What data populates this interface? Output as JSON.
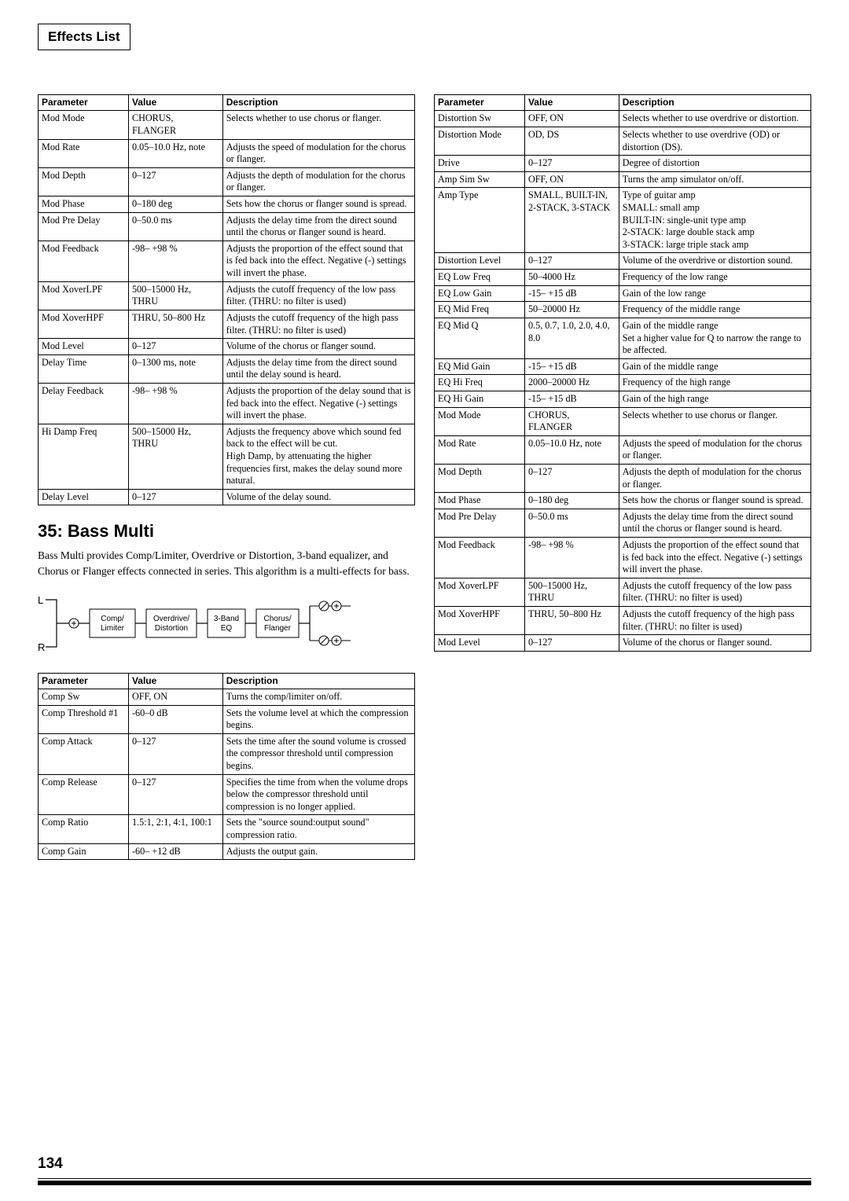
{
  "page_title_box": "Effects List",
  "section_number_title": "35: Bass Multi",
  "section_intro": "Bass Multi provides Comp/Limiter, Overdrive or Distortion, 3-band equalizer, and Chorus or Flanger effects connected in series. This algorithm is a multi-effects for bass.",
  "page_number": "134",
  "diagram": {
    "labels": {
      "L": "L",
      "R": "R",
      "b1": "Comp/\nLimiter",
      "b2": "Overdrive/\nDistortion",
      "b3": "3-Band\nEQ",
      "b4": "Chorus/\nFlanger"
    }
  },
  "headers": {
    "param": "Parameter",
    "value": "Value",
    "desc": "Description"
  },
  "table_top_left": [
    {
      "p": "Mod Mode",
      "v": "CHORUS, FLANGER",
      "d": "Selects whether to use chorus or flanger."
    },
    {
      "p": "Mod Rate",
      "v": "0.05–10.0 Hz, note",
      "d": "Adjusts the speed of modulation for the chorus or flanger."
    },
    {
      "p": "Mod Depth",
      "v": "0–127",
      "d": "Adjusts the depth of modulation for the chorus or flanger."
    },
    {
      "p": "Mod Phase",
      "v": "0–180 deg",
      "d": "Sets how the chorus or flanger sound is spread."
    },
    {
      "p": "Mod Pre Delay",
      "v": "0–50.0 ms",
      "d": "Adjusts the delay time from the direct sound until the chorus or flanger sound is heard."
    },
    {
      "p": "Mod Feedback",
      "v": "-98– +98 %",
      "d": "Adjusts the proportion of the effect sound that is fed back into the effect. Negative (-) settings will invert the phase."
    },
    {
      "p": "Mod XoverLPF",
      "v": "500–15000 Hz, THRU",
      "d": "Adjusts the cutoff frequency of the low pass filter. (THRU: no filter is used)"
    },
    {
      "p": "Mod XoverHPF",
      "v": "THRU, 50–800 Hz",
      "d": "Adjusts the cutoff frequency of the high pass filter. (THRU: no filter is used)"
    },
    {
      "p": "Mod Level",
      "v": "0–127",
      "d": "Volume of the chorus or flanger sound."
    },
    {
      "p": "Delay Time",
      "v": "0–1300 ms, note",
      "d": "Adjusts the delay time from the direct sound until the delay sound is heard."
    },
    {
      "p": "Delay Feedback",
      "v": "-98– +98 %",
      "d": "Adjusts the proportion of the delay sound that is fed back into the effect. Negative (-) settings will invert the phase."
    },
    {
      "p": "Hi Damp Freq",
      "v": "500–15000 Hz, THRU",
      "d": "Adjusts the frequency above which sound fed back to the effect will be cut.\nHigh Damp, by attenuating the higher frequencies first, makes the delay sound more natural."
    },
    {
      "p": "Delay Level",
      "v": "0–127",
      "d": "Volume of the delay sound."
    }
  ],
  "table_bottom_left": [
    {
      "p": "Comp Sw",
      "v": "OFF, ON",
      "d": "Turns the comp/limiter on/off."
    },
    {
      "p": "Comp Threshold #1",
      "v": "-60–0 dB",
      "d": "Sets the volume level at which the compression begins."
    },
    {
      "p": "Comp Attack",
      "v": "0–127",
      "d": "Sets the time after the sound volume is crossed the compressor threshold until compression begins."
    },
    {
      "p": "Comp Release",
      "v": "0–127",
      "d": "Specifies the time from when the volume drops below the compressor threshold until compression is no longer applied."
    },
    {
      "p": "Comp Ratio",
      "v": "1.5:1, 2:1, 4:1, 100:1",
      "d": "Sets the \"source sound:output sound\" compression ratio."
    },
    {
      "p": "Comp Gain",
      "v": "-60– +12 dB",
      "d": "Adjusts the output gain."
    }
  ],
  "table_right": [
    {
      "p": "Distortion Sw",
      "v": "OFF, ON",
      "d": "Selects whether to use overdrive or distortion."
    },
    {
      "p": "Distortion Mode",
      "v": "OD, DS",
      "d": "Selects whether to use overdrive (OD) or distortion (DS)."
    },
    {
      "p": "Drive",
      "v": "0–127",
      "d": "Degree of distortion"
    },
    {
      "p": "Amp Sim Sw",
      "v": "OFF, ON",
      "d": "Turns the amp simulator on/off."
    },
    {
      "p": "Amp Type",
      "v": "SMALL, BUILT-IN, 2-STACK, 3-STACK",
      "d": "Type of guitar amp\nSMALL: small amp\nBUILT-IN: single-unit type amp\n2-STACK: large double stack amp\n3-STACK: large triple stack amp"
    },
    {
      "p": "Distortion Level",
      "v": "0–127",
      "d": "Volume of the overdrive or distortion sound."
    },
    {
      "p": "EQ Low Freq",
      "v": "50–4000 Hz",
      "d": "Frequency of the low range"
    },
    {
      "p": "EQ Low Gain",
      "v": "-15– +15 dB",
      "d": "Gain of the low range"
    },
    {
      "p": "EQ Mid Freq",
      "v": "50–20000 Hz",
      "d": "Frequency of the middle range"
    },
    {
      "p": "EQ Mid Q",
      "v": "0.5, 0.7, 1.0, 2.0, 4.0, 8.0",
      "d": "Gain of the middle range\nSet a higher value for Q to narrow the range to be affected."
    },
    {
      "p": "EQ Mid Gain",
      "v": "-15– +15 dB",
      "d": "Gain of the middle range"
    },
    {
      "p": "EQ Hi Freq",
      "v": "2000–20000 Hz",
      "d": "Frequency of the high range"
    },
    {
      "p": "EQ Hi Gain",
      "v": "-15– +15 dB",
      "d": "Gain of the high range"
    },
    {
      "p": "Mod Mode",
      "v": "CHORUS, FLANGER",
      "d": "Selects whether to use chorus or flanger."
    },
    {
      "p": "Mod Rate",
      "v": "0.05–10.0 Hz, note",
      "d": "Adjusts the speed of modulation for the chorus or flanger."
    },
    {
      "p": "Mod Depth",
      "v": "0–127",
      "d": "Adjusts the depth of modulation for the chorus or flanger."
    },
    {
      "p": "Mod Phase",
      "v": "0–180 deg",
      "d": "Sets how the chorus or flanger sound is spread."
    },
    {
      "p": "Mod Pre Delay",
      "v": "0–50.0 ms",
      "d": "Adjusts the delay time from the direct sound until the chorus or flanger sound is heard."
    },
    {
      "p": "Mod Feedback",
      "v": "-98– +98 %",
      "d": "Adjusts the proportion of the effect sound that is fed back into the effect. Negative (-) settings will invert the phase."
    },
    {
      "p": "Mod XoverLPF",
      "v": "500–15000 Hz, THRU",
      "d": "Adjusts the cutoff frequency of the low pass filter. (THRU: no filter is used)"
    },
    {
      "p": "Mod XoverHPF",
      "v": "THRU, 50–800 Hz",
      "d": "Adjusts the cutoff frequency of the high pass filter. (THRU: no filter is used)"
    },
    {
      "p": "Mod Level",
      "v": "0–127",
      "d": "Volume of the chorus or flanger sound."
    }
  ]
}
